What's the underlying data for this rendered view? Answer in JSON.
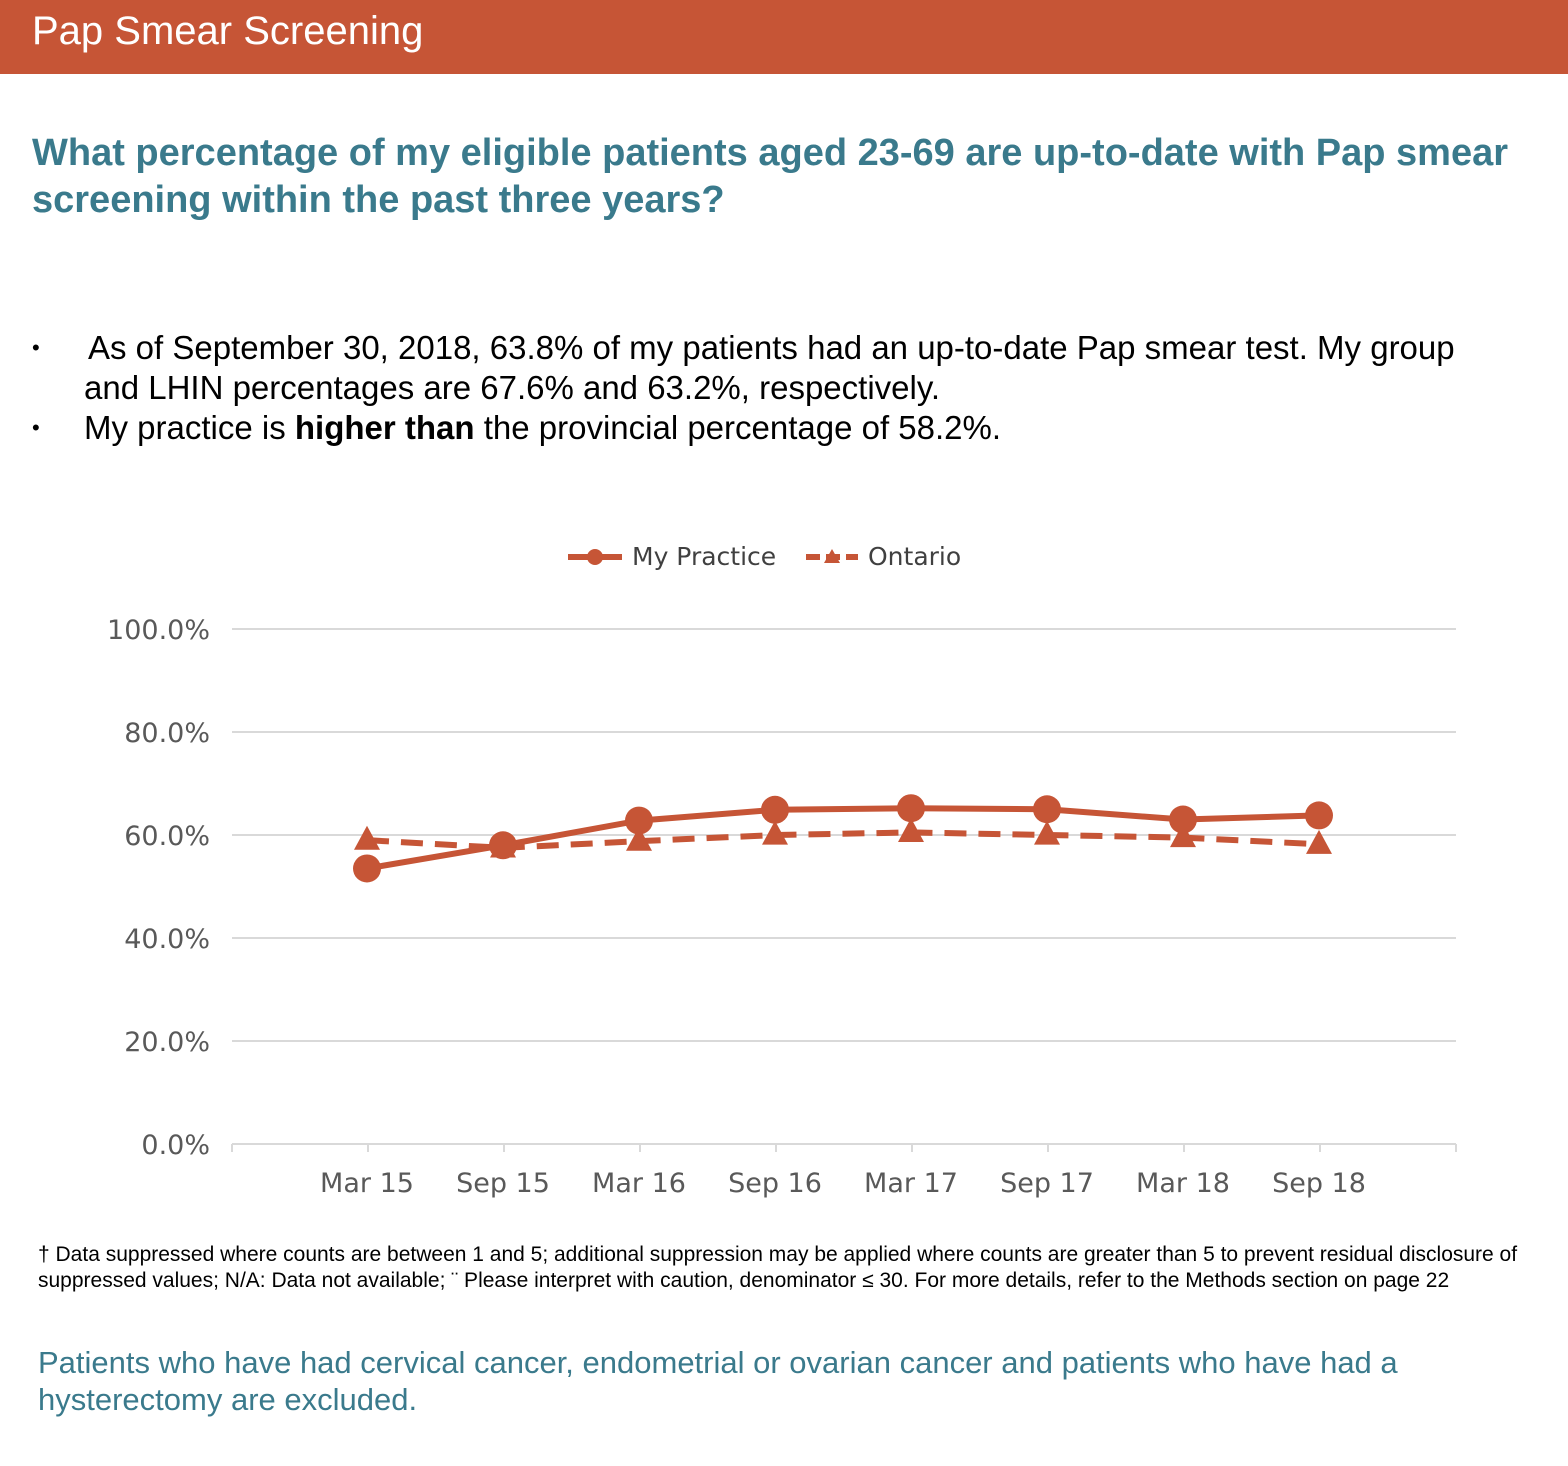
{
  "banner": {
    "title": "Pap Smear Screening"
  },
  "question": "What percentage of my eligible patients aged 23-69 are up-to-date with Pap smear screening within the past three years?",
  "bullets": {
    "b1": "As of September 30, 2018, 63.8% of my patients had an up-to-date Pap smear test. My group and LHIN percentages are 67.6% and 63.2%, respectively.",
    "b2_pre": "My practice is ",
    "b2_bold": "higher than",
    "b2_post": " the provincial percentage of 58.2%."
  },
  "colors": {
    "banner": "#c65536",
    "series": "#c65536",
    "question_text": "#3a7a8c",
    "grid": "#d9d9d9",
    "axis_text": "#595959"
  },
  "chart_data": {
    "type": "line",
    "categories": [
      "Mar 15",
      "Sep 15",
      "Mar 16",
      "Sep 16",
      "Mar 17",
      "Sep 17",
      "Mar 18",
      "Sep 18"
    ],
    "series": [
      {
        "name": "My Practice",
        "values": [
          53.5,
          58.0,
          62.8,
          64.9,
          65.2,
          65.0,
          63.0,
          63.8
        ],
        "marker": "circle",
        "line": "solid"
      },
      {
        "name": "Ontario",
        "values": [
          59.0,
          57.5,
          58.8,
          60.0,
          60.5,
          60.0,
          59.5,
          58.2
        ],
        "marker": "triangle",
        "line": "dashed"
      }
    ],
    "ylim": [
      0,
      100
    ],
    "yticks": [
      "0.0%",
      "20.0%",
      "40.0%",
      "60.0%",
      "80.0%",
      "100.0%"
    ],
    "ytick_values": [
      0,
      20,
      40,
      60,
      80,
      100
    ],
    "grid": true,
    "legend_position": "top-center"
  },
  "footnote": "† Data suppressed where counts are between 1 and 5; additional suppression may be applied where counts are greater than 5 to prevent residual disclosure of suppressed values; N/A: Data not available; ¨ Please interpret with caution, denominator ≤ 30. For more details, refer to the Methods section on page 22",
  "exclusion": "Patients who have had cervical cancer, endometrial or ovarian cancer and patients who have had a hysterectomy are excluded."
}
